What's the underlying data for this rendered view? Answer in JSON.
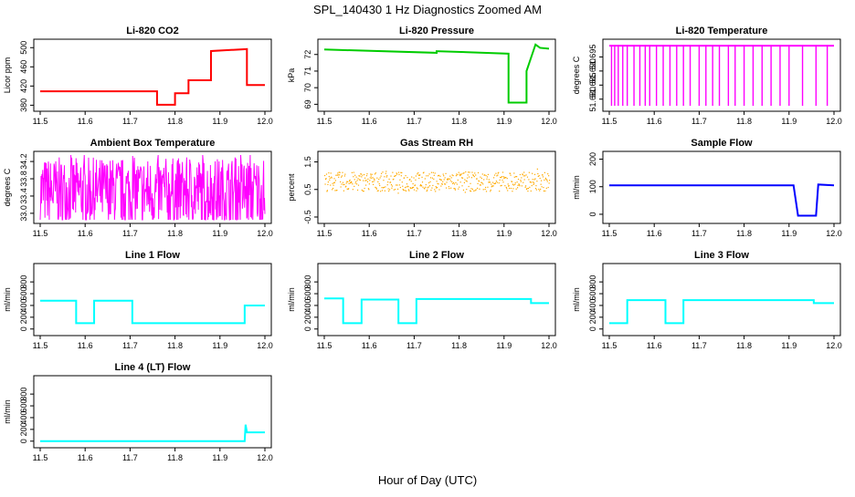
{
  "figure": {
    "title": "SPL_140430  1 Hz Diagnostics Zoomed AM",
    "xlabel": "Hour of Day (UTC)"
  },
  "chart_data": [
    {
      "id": "co2",
      "type": "line",
      "title": "Li-820 CO2",
      "ylabel": "Licor ppm",
      "color": "#ff0000",
      "xlim": [
        11.5,
        12.0
      ],
      "ylim": [
        375,
        510
      ],
      "xticks": [
        "11.5",
        "11.6",
        "11.7",
        "11.8",
        "11.9",
        "12.0"
      ],
      "yticks": [
        "380",
        "420",
        "460",
        "500"
      ],
      "x": [
        11.5,
        11.76,
        11.76,
        11.8,
        11.8,
        11.83,
        11.83,
        11.88,
        11.88,
        11.96,
        11.96,
        12.0
      ],
      "values": [
        409,
        409,
        381,
        381,
        405,
        405,
        432,
        432,
        493,
        497,
        422,
        422
      ]
    },
    {
      "id": "pressure",
      "type": "line",
      "title": "Li-820 Pressure",
      "ylabel": "kPa",
      "color": "#00cc00",
      "xlim": [
        11.5,
        12.0
      ],
      "ylim": [
        68.8,
        72.7
      ],
      "xticks": [
        "11.5",
        "11.6",
        "11.7",
        "11.8",
        "11.9",
        "12.0"
      ],
      "yticks": [
        "69",
        "70",
        "71",
        "72"
      ],
      "x": [
        11.5,
        11.75,
        11.75,
        11.91,
        11.91,
        11.95,
        11.95,
        11.97,
        11.98,
        12.0
      ],
      "values": [
        72.3,
        72.1,
        72.2,
        72.05,
        69.1,
        69.1,
        71.0,
        72.6,
        72.4,
        72.35
      ]
    },
    {
      "id": "temperature",
      "type": "line",
      "title": "Li-820 Temperature",
      "ylabel": "degrees C",
      "color": "#ff00ff",
      "xlim": [
        11.5,
        12.0
      ],
      "ylim": [
        51.677,
        51.7
      ],
      "xticks": [
        "11.5",
        "11.6",
        "11.7",
        "11.8",
        "11.9",
        "12.0"
      ],
      "yticks": [
        "51.680",
        "51.685",
        "51.690",
        "51.695"
      ],
      "x": [
        11.5,
        12.0
      ],
      "values": [
        51.699,
        51.699
      ],
      "drops": [
        11.505,
        11.512,
        11.52,
        11.53,
        11.54,
        11.555,
        11.568,
        11.58,
        11.59,
        11.605,
        11.62,
        11.635,
        11.65,
        11.665,
        11.68,
        11.7,
        11.715,
        11.73,
        11.745,
        11.765,
        11.78,
        11.8,
        11.82,
        11.84,
        11.86,
        11.88,
        11.9,
        11.93,
        11.96,
        11.985
      ]
    },
    {
      "id": "ambient",
      "type": "line",
      "title": "Ambient Box Temperature",
      "ylabel": "degrees C",
      "color": "#ff00ff",
      "xlim": [
        11.5,
        12.0
      ],
      "ylim": [
        32.85,
        34.35
      ],
      "xticks": [
        "11.5",
        "11.6",
        "11.7",
        "11.8",
        "11.9",
        "12.0"
      ],
      "yticks": [
        "33.0",
        "33.4",
        "33.8",
        "34.2"
      ],
      "noise": {
        "center": 33.5,
        "amp": 0.8
      }
    },
    {
      "id": "rh",
      "type": "scatter",
      "title": "Gas Stream RH",
      "ylabel": "percent",
      "color": "#ffaa00",
      "xlim": [
        11.5,
        12.0
      ],
      "ylim": [
        -0.6,
        1.75
      ],
      "xticks": [
        "11.5",
        "11.6",
        "11.7",
        "11.8",
        "11.9",
        "12.0"
      ],
      "yticks": [
        "-0.5",
        "0.5",
        "1.5"
      ],
      "noise": {
        "center": 0.8,
        "amp": 0.35
      }
    },
    {
      "id": "sample",
      "type": "line",
      "title": "Sample Flow",
      "ylabel": "ml/min",
      "color": "#0000ff",
      "xlim": [
        11.5,
        12.0
      ],
      "ylim": [
        -20,
        215
      ],
      "xticks": [
        "11.5",
        "11.6",
        "11.7",
        "11.8",
        "11.9",
        "12.0"
      ],
      "yticks": [
        "0",
        "100",
        "200"
      ],
      "x": [
        11.5,
        11.91,
        11.92,
        11.96,
        11.965,
        12.0
      ],
      "values": [
        105,
        105,
        -5,
        -5,
        108,
        105
      ]
    },
    {
      "id": "line1",
      "type": "line",
      "title": "Line 1 Flow",
      "ylabel": "ml/min",
      "color": "#00ffff",
      "xlim": [
        11.5,
        12.0
      ],
      "ylim": [
        -50,
        1050
      ],
      "xticks": [
        "11.5",
        "11.6",
        "11.7",
        "11.8",
        "11.9",
        "12.0"
      ],
      "yticks": [
        "0",
        "200",
        "400",
        "600",
        "800"
      ],
      "x": [
        11.5,
        11.58,
        11.58,
        11.62,
        11.62,
        11.705,
        11.705,
        11.955,
        11.955,
        12.0
      ],
      "values": [
        480,
        480,
        100,
        100,
        480,
        480,
        100,
        100,
        400,
        400
      ]
    },
    {
      "id": "line2",
      "type": "line",
      "title": "Line 2 Flow",
      "ylabel": "ml/min",
      "color": "#00ffff",
      "xlim": [
        11.5,
        12.0
      ],
      "ylim": [
        -50,
        1050
      ],
      "xticks": [
        "11.5",
        "11.6",
        "11.7",
        "11.8",
        "11.9",
        "12.0"
      ],
      "yticks": [
        "0",
        "200",
        "400",
        "600",
        "800"
      ],
      "x": [
        11.5,
        11.542,
        11.542,
        11.583,
        11.583,
        11.665,
        11.665,
        11.705,
        11.705,
        11.96,
        11.96,
        12.0
      ],
      "values": [
        520,
        520,
        100,
        100,
        500,
        500,
        100,
        100,
        510,
        510,
        440,
        440
      ]
    },
    {
      "id": "line3",
      "type": "line",
      "title": "Line 3 Flow",
      "ylabel": "ml/min",
      "color": "#00ffff",
      "xlim": [
        11.5,
        12.0
      ],
      "ylim": [
        -50,
        1050
      ],
      "xticks": [
        "11.5",
        "11.6",
        "11.7",
        "11.8",
        "11.9",
        "12.0"
      ],
      "yticks": [
        "0",
        "200",
        "400",
        "600",
        "800"
      ],
      "x": [
        11.5,
        11.54,
        11.54,
        11.625,
        11.625,
        11.665,
        11.665,
        11.955,
        11.955,
        12.0
      ],
      "values": [
        100,
        100,
        490,
        490,
        100,
        100,
        490,
        490,
        440,
        440
      ]
    },
    {
      "id": "line4",
      "type": "line",
      "title": "Line 4 (LT) Flow",
      "ylabel": "ml/min",
      "color": "#00ffff",
      "xlim": [
        11.5,
        12.0
      ],
      "ylim": [
        -50,
        1050
      ],
      "xticks": [
        "11.5",
        "11.6",
        "11.7",
        "11.8",
        "11.9",
        "12.0"
      ],
      "yticks": [
        "0",
        "200",
        "400",
        "600",
        "800"
      ],
      "x": [
        11.5,
        11.955,
        11.957,
        11.96,
        11.962,
        12.0
      ],
      "values": [
        0,
        0,
        280,
        150,
        150,
        150
      ]
    }
  ]
}
